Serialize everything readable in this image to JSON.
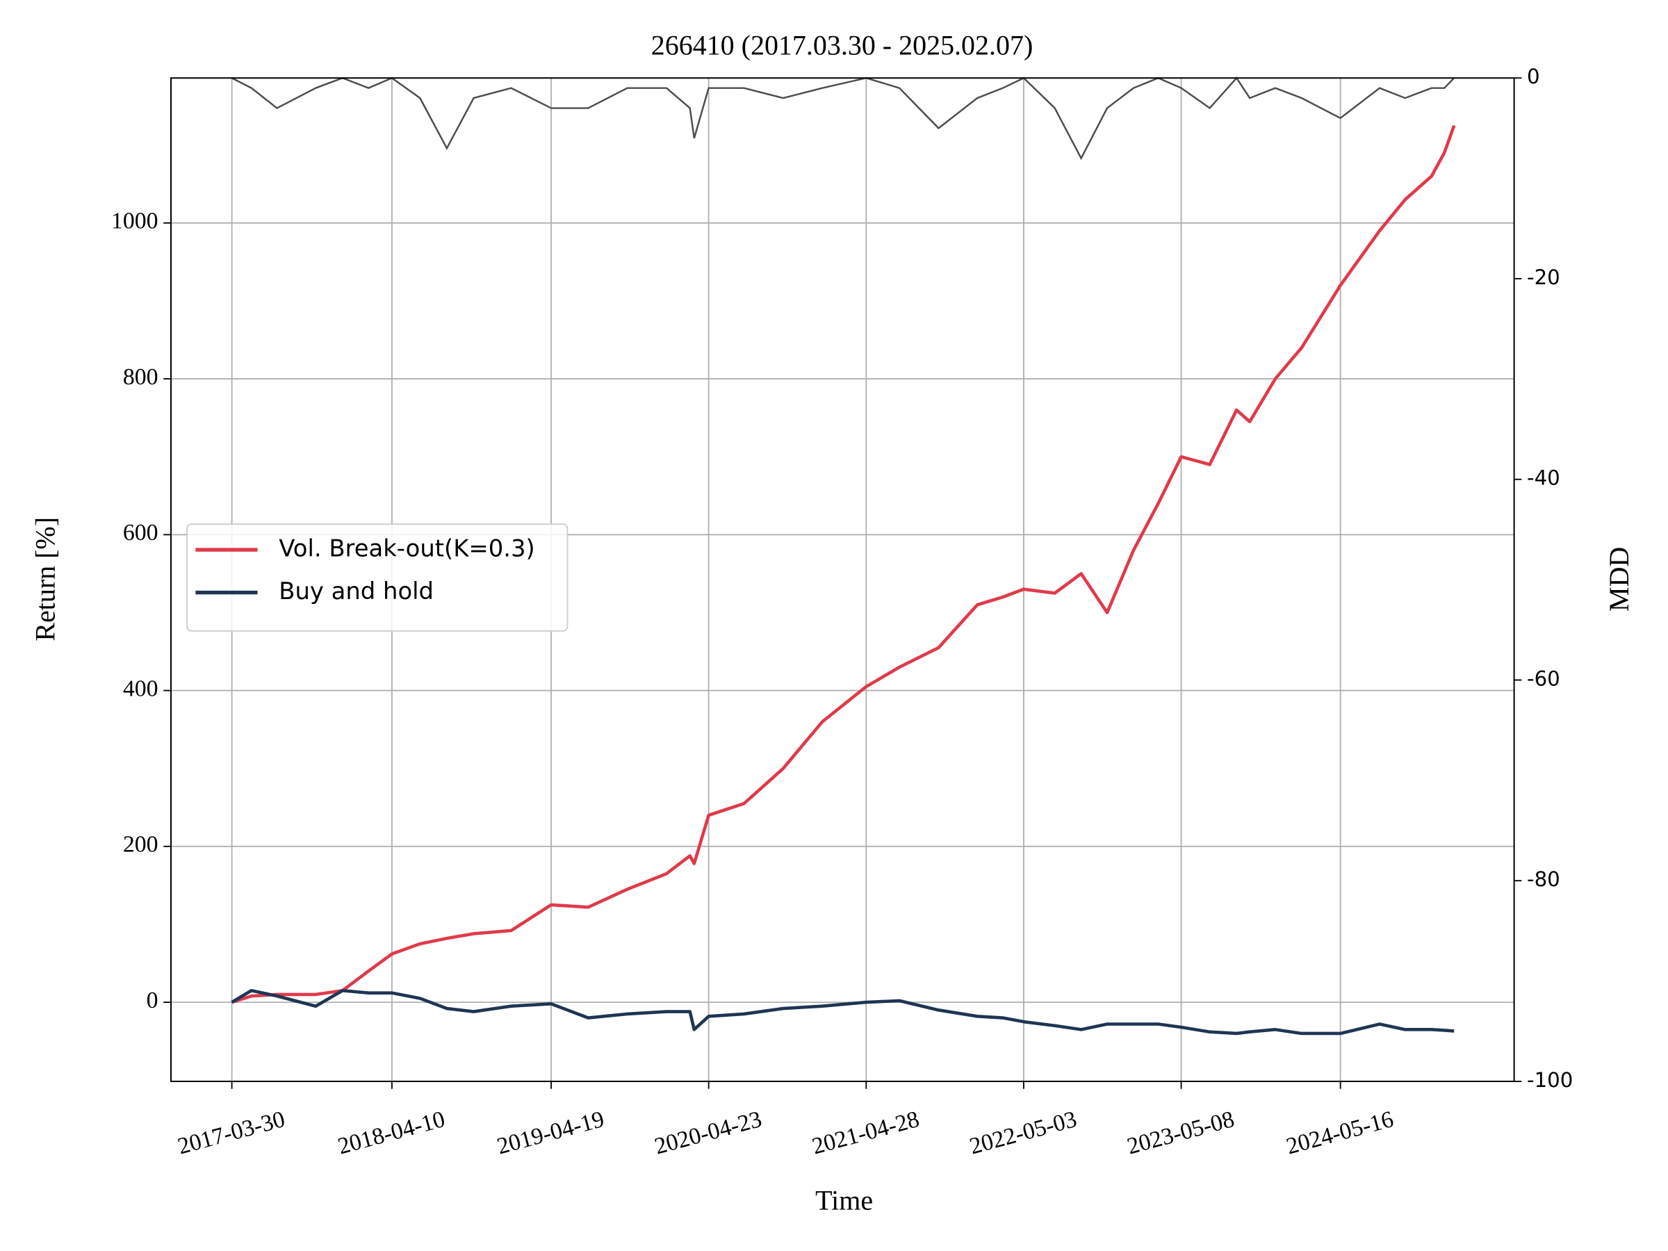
{
  "chart_data": {
    "type": "line",
    "title": "266410 (2017.03.30 - 2025.02.07)",
    "xlabel": "Time",
    "ylabel": "Return [%]",
    "y2label": "MDD",
    "x": [
      "2017-03-30",
      "2017-05-15",
      "2017-07-14",
      "2017-10-13",
      "2017-12-15",
      "2018-02-14",
      "2018-04-10",
      "2018-06-15",
      "2018-08-17",
      "2018-10-19",
      "2019-01-15",
      "2019-04-19",
      "2019-07-15",
      "2019-10-15",
      "2020-01-15",
      "2020-03-10",
      "2020-03-20",
      "2020-04-23",
      "2020-07-15",
      "2020-10-15",
      "2021-01-15",
      "2021-04-28",
      "2021-07-15",
      "2021-10-15",
      "2022-01-14",
      "2022-03-15",
      "2022-05-03",
      "2022-07-15",
      "2022-09-15",
      "2022-11-15",
      "2023-01-16",
      "2023-03-15",
      "2023-05-08",
      "2023-07-14",
      "2023-09-15",
      "2023-10-16",
      "2023-12-15",
      "2024-02-15",
      "2024-05-16",
      "2024-08-16",
      "2024-10-15",
      "2024-12-16",
      "2025-01-15",
      "2025-02-07"
    ],
    "series": [
      {
        "name": "Vol. Break-out(K=0.3)",
        "color": "#e03a4a",
        "values": [
          0,
          8,
          10,
          10,
          15,
          40,
          62,
          75,
          82,
          88,
          92,
          125,
          122,
          145,
          165,
          188,
          178,
          240,
          255,
          300,
          360,
          405,
          430,
          455,
          510,
          520,
          530,
          525,
          550,
          500,
          580,
          640,
          700,
          690,
          760,
          745,
          800,
          840,
          920,
          990,
          1030,
          1060,
          1090,
          1125
        ]
      },
      {
        "name": "Buy and hold",
        "color": "#1f3552",
        "values": [
          0,
          15,
          8,
          -5,
          15,
          12,
          12,
          5,
          -8,
          -12,
          -5,
          -2,
          -20,
          -15,
          -12,
          -12,
          -35,
          -18,
          -15,
          -8,
          -5,
          0,
          2,
          -10,
          -18,
          -20,
          -25,
          -30,
          -35,
          -28,
          -28,
          -28,
          -32,
          -38,
          -40,
          -38,
          -35,
          -40,
          -40,
          -28,
          -35,
          -35,
          -36,
          -37
        ]
      }
    ],
    "mdd": {
      "axis": "y2",
      "color": "#4d4d4d",
      "values": [
        0,
        -1,
        -3,
        -1,
        0,
        -1,
        0,
        -2,
        -7,
        -2,
        -1,
        -3,
        -3,
        -1,
        -1,
        -3,
        -6,
        -1,
        -1,
        -2,
        -1,
        0,
        -1,
        -5,
        -2,
        -1,
        0,
        -3,
        -8,
        -3,
        -1,
        0,
        -1,
        -3,
        0,
        -2,
        -1,
        -2,
        -4,
        -1,
        -2,
        -1,
        -1,
        0
      ]
    },
    "xlim": [
      "2016-11-07",
      "2025-06-28"
    ],
    "xticks": [
      "2017-03-30",
      "2018-04-10",
      "2019-04-19",
      "2020-04-23",
      "2021-04-28",
      "2022-05-03",
      "2023-05-08",
      "2024-05-16"
    ],
    "ylim": [
      -101.5,
      1186
    ],
    "yticks": [
      0,
      200,
      400,
      600,
      800,
      1000
    ],
    "y2lim": [
      -100,
      0
    ],
    "y2ticks": [
      0,
      -20,
      -40,
      -60,
      -80,
      -100
    ],
    "grid": true,
    "legend": "center left"
  }
}
